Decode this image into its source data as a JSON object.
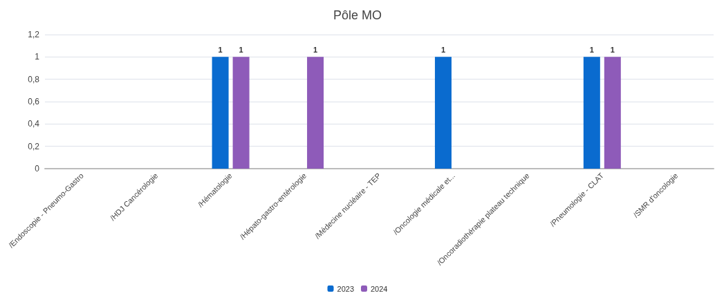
{
  "chart_data": {
    "type": "bar",
    "title": "Pôle MO",
    "categories": [
      "/Endoscopie - Pneumo-Gastro",
      "/HDJ Cancérologie",
      "/Hématologie",
      "/Hépato-gastro-entérologie",
      "/Médecine nucléaire - TEP",
      "/Oncologie médicale et...",
      "/Oncoradiothérapie plateau technique",
      "/Pneumologie - CLAT",
      "/SMR d'oncologie"
    ],
    "series": [
      {
        "name": "2023",
        "color": "#0a6bcf",
        "values": [
          null,
          null,
          1,
          null,
          null,
          1,
          null,
          1,
          null
        ]
      },
      {
        "name": "2024",
        "color": "#8e5bb9",
        "values": [
          null,
          null,
          1,
          1,
          null,
          null,
          null,
          1,
          null
        ]
      }
    ],
    "ylim": [
      0,
      1.2
    ],
    "yticks": [
      0,
      {
        "value": 0.2,
        "label": "0,2"
      },
      {
        "value": 0.4,
        "label": "0,4"
      },
      {
        "value": 0.6,
        "label": "0,6"
      },
      {
        "value": 0.8,
        "label": "0,8"
      },
      1,
      {
        "value": 1.2,
        "label": "1,2"
      }
    ],
    "grid": "y",
    "legend": "bottom",
    "data_labels": true
  }
}
